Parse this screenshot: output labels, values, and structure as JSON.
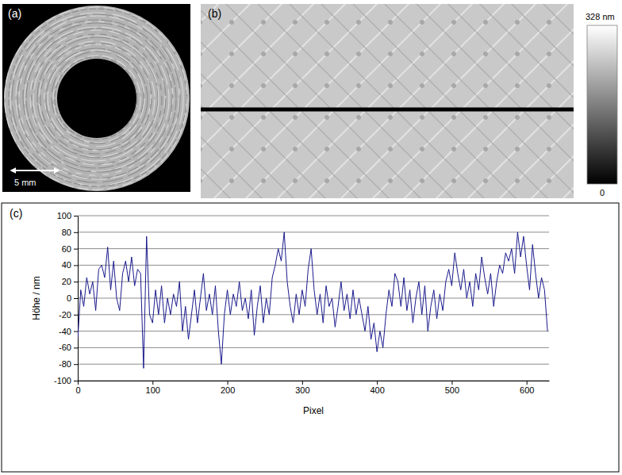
{
  "image_panels": {
    "a": {
      "label": "(a)",
      "scale_bar": "5 mm"
    },
    "b": {
      "label": "(b)",
      "colorbar": {
        "range": [
          0,
          328
        ],
        "ticks": [
          0,
          {
            "value": 328,
            "label": "328 nm"
          }
        ]
      }
    }
  },
  "chart_data": {
    "type": "line",
    "label": "(c)",
    "xlabel": "Pixel",
    "ylabel": "Höhe / nm",
    "x": [
      0,
      4,
      8,
      12,
      16,
      20,
      24,
      28,
      32,
      36,
      40,
      44,
      48,
      52,
      56,
      60,
      64,
      68,
      72,
      76,
      80,
      84,
      88,
      92,
      96,
      100,
      104,
      108,
      112,
      116,
      120,
      124,
      128,
      132,
      136,
      140,
      144,
      148,
      152,
      156,
      160,
      164,
      168,
      172,
      176,
      180,
      184,
      188,
      192,
      196,
      200,
      204,
      208,
      212,
      216,
      220,
      224,
      228,
      232,
      236,
      240,
      244,
      248,
      252,
      256,
      260,
      264,
      268,
      272,
      276,
      280,
      284,
      288,
      292,
      296,
      300,
      304,
      308,
      312,
      316,
      320,
      324,
      328,
      332,
      336,
      340,
      344,
      348,
      352,
      356,
      360,
      364,
      368,
      372,
      376,
      380,
      384,
      388,
      392,
      396,
      400,
      404,
      408,
      412,
      416,
      420,
      424,
      428,
      432,
      436,
      440,
      444,
      448,
      452,
      456,
      460,
      464,
      468,
      472,
      476,
      480,
      484,
      488,
      492,
      496,
      500,
      504,
      508,
      512,
      516,
      520,
      524,
      528,
      532,
      536,
      540,
      544,
      548,
      552,
      556,
      560,
      564,
      568,
      572,
      576,
      580,
      584,
      588,
      592,
      596,
      600,
      604,
      608,
      612,
      616,
      620,
      624,
      628
    ],
    "series": [
      {
        "color": "#1a1a8c",
        "values": [
          -50,
          10,
          -10,
          25,
          5,
          20,
          -15,
          35,
          40,
          25,
          62,
          10,
          45,
          0,
          -15,
          30,
          45,
          20,
          50,
          15,
          35,
          30,
          -85,
          75,
          -20,
          -30,
          10,
          -20,
          15,
          -30,
          0,
          -20,
          5,
          -10,
          20,
          -40,
          -10,
          -50,
          -20,
          10,
          -30,
          0,
          30,
          -15,
          5,
          -20,
          15,
          -40,
          -80,
          -20,
          10,
          -20,
          5,
          -10,
          20,
          -15,
          0,
          -25,
          10,
          -45,
          -10,
          15,
          -30,
          0,
          -20,
          25,
          40,
          60,
          45,
          80,
          20,
          -10,
          -30,
          5,
          -20,
          10,
          -10,
          35,
          60,
          10,
          -20,
          5,
          -30,
          15,
          -10,
          0,
          -35,
          -10,
          20,
          -15,
          5,
          -25,
          10,
          -20,
          0,
          -20,
          -40,
          -10,
          -50,
          -30,
          -65,
          -40,
          -60,
          -20,
          10,
          -10,
          30,
          20,
          -10,
          25,
          -15,
          10,
          -30,
          0,
          20,
          -20,
          15,
          -40,
          -10,
          10,
          -25,
          5,
          -15,
          20,
          35,
          15,
          55,
          30,
          10,
          35,
          0,
          20,
          -10,
          30,
          10,
          50,
          25,
          5,
          30,
          -10,
          20,
          40,
          30,
          55,
          45,
          60,
          30,
          80,
          50,
          75,
          40,
          10,
          65,
          30,
          0,
          25,
          10,
          -40
        ]
      }
    ],
    "xlim": [
      0,
      630
    ],
    "ylim": [
      -100,
      100
    ],
    "xticks": [
      0,
      100,
      200,
      300,
      400,
      500,
      600
    ],
    "yticks": [
      -100,
      -80,
      -60,
      -40,
      -20,
      0,
      20,
      40,
      60,
      80,
      100
    ],
    "grid": true
  }
}
